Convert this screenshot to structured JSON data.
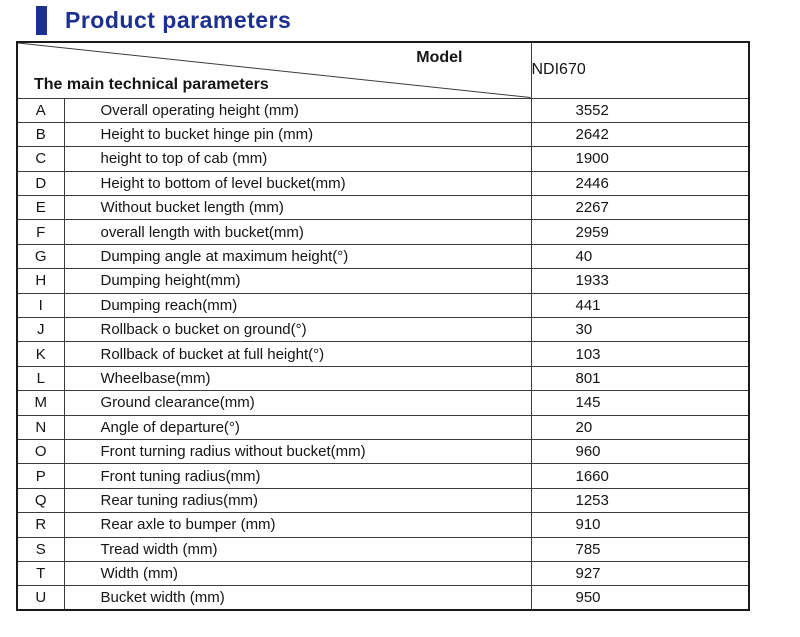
{
  "page": {
    "title": "Product parameters",
    "accent_color": "#1d2f8f"
  },
  "table": {
    "header": {
      "model_label": "Model",
      "parameters_label": "The main technical parameters",
      "model_value": "NDI670"
    },
    "rows": [
      {
        "letter": "A",
        "parameter": "Overall operating height (mm)",
        "value": "3552"
      },
      {
        "letter": "B",
        "parameter": "Height to bucket hinge pin (mm)",
        "value": "2642"
      },
      {
        "letter": "C",
        "parameter": "height to top of cab (mm)",
        "value": "1900"
      },
      {
        "letter": "D",
        "parameter": "Height to bottom of level bucket(mm)",
        "value": "2446"
      },
      {
        "letter": "E",
        "parameter": "Without bucket length  (mm)",
        "value": "2267"
      },
      {
        "letter": "F",
        "parameter": "overall length with bucket(mm)",
        "value": "2959"
      },
      {
        "letter": "G",
        "parameter": "Dumping angle at maximum height(°)",
        "value": "40"
      },
      {
        "letter": "H",
        "parameter": "Dumping height(mm)",
        "value": "1933"
      },
      {
        "letter": "I",
        "parameter": "Dumping reach(mm)",
        "value": "441"
      },
      {
        "letter": "J",
        "parameter": "Rollback o bucket on ground(°)",
        "value": "30"
      },
      {
        "letter": "K",
        "parameter": "Rollback of bucket at full height(°)",
        "value": "103"
      },
      {
        "letter": "L",
        "parameter": "Wheelbase(mm)",
        "value": "801"
      },
      {
        "letter": "M",
        "parameter": "Ground clearance(mm)",
        "value": "145"
      },
      {
        "letter": "N",
        "parameter": "Angle of departure(°)",
        "value": "20"
      },
      {
        "letter": "O",
        "parameter": "Front turning radius without bucket(mm)",
        "value": "960"
      },
      {
        "letter": "P",
        "parameter": "Front tuning radius(mm)",
        "value": "1660"
      },
      {
        "letter": "Q",
        "parameter": "Rear tuning radius(mm)",
        "value": "1253"
      },
      {
        "letter": "R",
        "parameter": "Rear axle to bumper (mm)",
        "value": "910"
      },
      {
        "letter": "S",
        "parameter": "Tread width (mm)",
        "value": "785"
      },
      {
        "letter": "T",
        "parameter": "Width (mm)",
        "value": "927"
      },
      {
        "letter": "U",
        "parameter": "Bucket width (mm)",
        "value": "950"
      }
    ]
  }
}
